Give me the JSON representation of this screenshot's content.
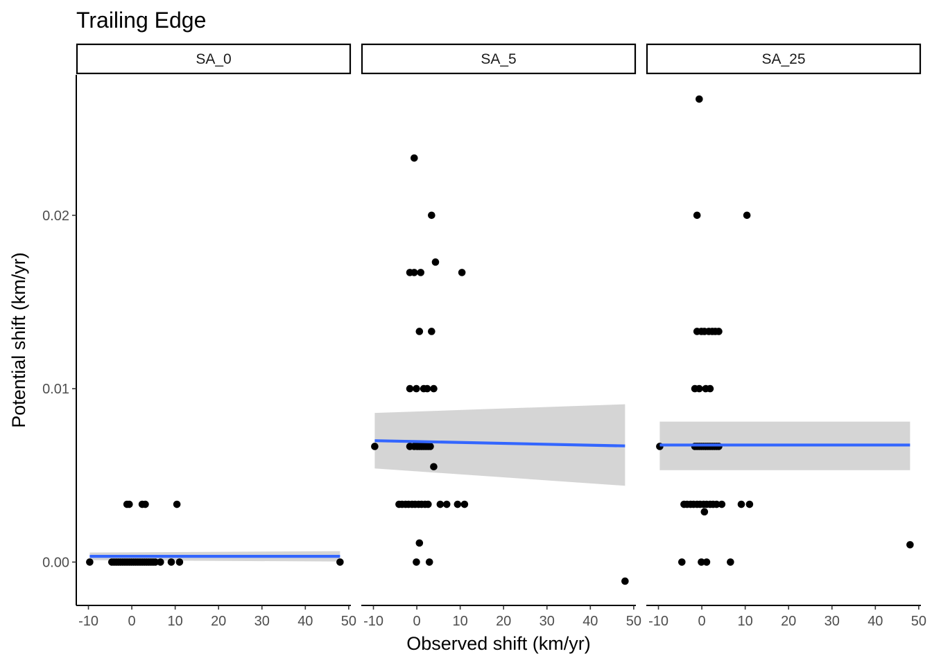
{
  "chart_data": {
    "type": "scatter",
    "title": "Trailing Edge",
    "xlabel": "Observed shift (km/yr)",
    "ylabel": "Potential shift (km/yr)",
    "xlim": [
      -12.8,
      50.5
    ],
    "ylim": [
      -0.0025,
      0.0281
    ],
    "x_ticks": [
      -10,
      0,
      10,
      20,
      30,
      40,
      50
    ],
    "y_ticks": [
      0.0,
      0.01,
      0.02
    ],
    "y_tick_labels": [
      "0.00",
      "0.01",
      "0.02"
    ],
    "grid": false,
    "colors": {
      "point": "#000000",
      "fit_line": "#3366FF",
      "ribbon": "#d3d3d3"
    },
    "panels": [
      {
        "label": "SA_0",
        "fit": {
          "x": [
            -9.7,
            48
          ],
          "y": [
            0.00033,
            0.00033
          ]
        },
        "ribbon": {
          "x": [
            -9.7,
            48
          ],
          "upper": [
            0.00055,
            0.00063
          ],
          "lower": [
            0.00011,
            3e-05
          ]
        },
        "points": [
          [
            -9.7,
            0
          ],
          [
            -4.6,
            0
          ],
          [
            -4.1,
            0
          ],
          [
            -3.6,
            0
          ],
          [
            -3.1,
            0
          ],
          [
            -2.6,
            0
          ],
          [
            -2.1,
            0
          ],
          [
            -1.6,
            0
          ],
          [
            -1.1,
            0
          ],
          [
            -0.6,
            0
          ],
          [
            -0.1,
            0
          ],
          [
            0.4,
            0
          ],
          [
            0.9,
            0
          ],
          [
            1.4,
            0
          ],
          [
            1.9,
            0
          ],
          [
            2.4,
            0
          ],
          [
            2.9,
            0
          ],
          [
            3.4,
            0
          ],
          [
            3.9,
            0
          ],
          [
            4.4,
            0
          ],
          [
            4.9,
            0
          ],
          [
            5.4,
            0
          ],
          [
            6.6,
            0
          ],
          [
            9.1,
            0
          ],
          [
            11.0,
            0
          ],
          [
            48,
            0
          ],
          [
            -1.1,
            0.00333
          ],
          [
            -0.6,
            0.00333
          ],
          [
            2.4,
            0.00333
          ],
          [
            3.1,
            0.00333
          ],
          [
            10.4,
            0.00333
          ]
        ]
      },
      {
        "label": "SA_5",
        "fit": {
          "x": [
            -9.7,
            48
          ],
          "y": [
            0.007,
            0.0067
          ]
        },
        "ribbon": {
          "x": [
            -9.7,
            48
          ],
          "upper": [
            0.0086,
            0.0091
          ],
          "lower": [
            0.0054,
            0.0044
          ]
        },
        "points": [
          [
            -0.6,
            0.0233
          ],
          [
            3.4,
            0.02
          ],
          [
            4.3,
            0.0173
          ],
          [
            -1.6,
            0.0167
          ],
          [
            -0.6,
            0.0167
          ],
          [
            0.9,
            0.0167
          ],
          [
            10.4,
            0.0167
          ],
          [
            0.6,
            0.0133
          ],
          [
            3.4,
            0.0133
          ],
          [
            -1.6,
            0.01
          ],
          [
            -0.1,
            0.01
          ],
          [
            1.6,
            0.01
          ],
          [
            2.4,
            0.01
          ],
          [
            3.9,
            0.01
          ],
          [
            -9.7,
            0.00667
          ],
          [
            -1.6,
            0.00667
          ],
          [
            -0.6,
            0.00667
          ],
          [
            0.1,
            0.00667
          ],
          [
            0.6,
            0.00667
          ],
          [
            1.1,
            0.00667
          ],
          [
            1.6,
            0.00667
          ],
          [
            2.1,
            0.00667
          ],
          [
            2.6,
            0.00667
          ],
          [
            3.1,
            0.00667
          ],
          [
            3.9,
            0.0055
          ],
          [
            -4.1,
            0.00333
          ],
          [
            -3.4,
            0.00333
          ],
          [
            -2.6,
            0.00333
          ],
          [
            -1.9,
            0.00333
          ],
          [
            -1.1,
            0.00333
          ],
          [
            -0.4,
            0.00333
          ],
          [
            0.4,
            0.00333
          ],
          [
            1.1,
            0.00333
          ],
          [
            1.9,
            0.00333
          ],
          [
            2.6,
            0.00333
          ],
          [
            5.4,
            0.00333
          ],
          [
            6.9,
            0.00333
          ],
          [
            9.4,
            0.00333
          ],
          [
            11.0,
            0.00333
          ],
          [
            0.6,
            0.0011
          ],
          [
            -0.1,
            0
          ],
          [
            2.9,
            0
          ],
          [
            48,
            -0.0011
          ]
        ]
      },
      {
        "label": "SA_25",
        "fit": {
          "x": [
            -9.7,
            48
          ],
          "y": [
            0.00675,
            0.00675
          ]
        },
        "ribbon": {
          "x": [
            -9.7,
            48
          ],
          "upper": [
            0.0081,
            0.0081
          ],
          "lower": [
            0.0053,
            0.0053
          ]
        },
        "points": [
          [
            -0.6,
            0.0267
          ],
          [
            -1.1,
            0.02
          ],
          [
            10.4,
            0.02
          ],
          [
            -1.1,
            0.0133
          ],
          [
            -0.1,
            0.0133
          ],
          [
            0.6,
            0.0133
          ],
          [
            1.6,
            0.0133
          ],
          [
            2.4,
            0.0133
          ],
          [
            3.1,
            0.0133
          ],
          [
            3.9,
            0.0133
          ],
          [
            -1.6,
            0.01
          ],
          [
            -0.6,
            0.01
          ],
          [
            0.9,
            0.01
          ],
          [
            1.9,
            0.01
          ],
          [
            -9.7,
            0.00667
          ],
          [
            -1.6,
            0.00667
          ],
          [
            -1.1,
            0.00667
          ],
          [
            -0.6,
            0.00667
          ],
          [
            -0.1,
            0.00667
          ],
          [
            0.4,
            0.00667
          ],
          [
            0.9,
            0.00667
          ],
          [
            1.4,
            0.00667
          ],
          [
            1.9,
            0.00667
          ],
          [
            2.4,
            0.00667
          ],
          [
            2.9,
            0.00667
          ],
          [
            3.4,
            0.00667
          ],
          [
            3.9,
            0.00667
          ],
          [
            -4.1,
            0.00333
          ],
          [
            -3.4,
            0.00333
          ],
          [
            -2.6,
            0.00333
          ],
          [
            -1.9,
            0.00333
          ],
          [
            -1.1,
            0.00333
          ],
          [
            -0.4,
            0.00333
          ],
          [
            0.4,
            0.00333
          ],
          [
            1.1,
            0.00333
          ],
          [
            1.9,
            0.00333
          ],
          [
            2.6,
            0.00333
          ],
          [
            3.4,
            0.00333
          ],
          [
            4.6,
            0.00333
          ],
          [
            9.1,
            0.00333
          ],
          [
            11.0,
            0.00333
          ],
          [
            0.6,
            0.0029
          ],
          [
            -4.6,
            0
          ],
          [
            -0.1,
            0
          ],
          [
            1.1,
            0
          ],
          [
            6.6,
            0
          ],
          [
            48,
            0.001
          ]
        ]
      }
    ]
  }
}
